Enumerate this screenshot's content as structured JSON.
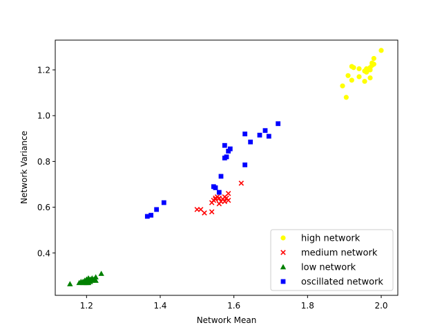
{
  "chart_data": {
    "type": "scatter",
    "title": "",
    "xlabel": "Network Mean",
    "ylabel": "Network Variance",
    "xlim": [
      1.115,
      2.045
    ],
    "ylim": [
      0.215,
      1.33
    ],
    "xticks": [
      1.2,
      1.4,
      1.6,
      1.8,
      2.0
    ],
    "xtick_labels": [
      "1.2",
      "1.4",
      "1.6",
      "1.8",
      "2.0"
    ],
    "yticks": [
      0.4,
      0.6,
      0.8,
      1.0,
      1.2
    ],
    "ytick_labels": [
      "0.4",
      "0.6",
      "0.8",
      "1.0",
      "1.2"
    ],
    "grid": false,
    "legend_position": "lower-right",
    "series": [
      {
        "name": "high network",
        "color": "#ffff00",
        "marker": "circle",
        "points": [
          [
            2.0,
            1.285
          ],
          [
            1.98,
            1.25
          ],
          [
            1.975,
            1.23
          ],
          [
            1.98,
            1.225
          ],
          [
            1.97,
            1.21
          ],
          [
            1.965,
            1.2
          ],
          [
            1.96,
            1.205
          ],
          [
            1.96,
            1.19
          ],
          [
            1.97,
            1.2
          ],
          [
            1.955,
            1.195
          ],
          [
            1.94,
            1.205
          ],
          [
            1.92,
            1.215
          ],
          [
            1.925,
            1.21
          ],
          [
            1.91,
            1.175
          ],
          [
            1.92,
            1.155
          ],
          [
            1.94,
            1.17
          ],
          [
            1.955,
            1.15
          ],
          [
            1.97,
            1.165
          ],
          [
            1.895,
            1.13
          ],
          [
            1.905,
            1.08
          ],
          [
            1.975,
            1.22
          ]
        ]
      },
      {
        "name": "medium network",
        "color": "#ff0000",
        "marker": "x",
        "points": [
          [
            1.62,
            0.705
          ],
          [
            1.585,
            0.66
          ],
          [
            1.575,
            0.645
          ],
          [
            1.58,
            0.64
          ],
          [
            1.57,
            0.635
          ],
          [
            1.585,
            0.63
          ],
          [
            1.56,
            0.64
          ],
          [
            1.555,
            0.645
          ],
          [
            1.55,
            0.635
          ],
          [
            1.545,
            0.63
          ],
          [
            1.54,
            0.62
          ],
          [
            1.565,
            0.625
          ],
          [
            1.575,
            0.625
          ],
          [
            1.56,
            0.615
          ],
          [
            1.5,
            0.59
          ],
          [
            1.51,
            0.59
          ],
          [
            1.52,
            0.575
          ],
          [
            1.54,
            0.58
          ],
          [
            1.55,
            0.64
          ]
        ]
      },
      {
        "name": "low network",
        "color": "#008000",
        "marker": "triangle",
        "points": [
          [
            1.24,
            0.31
          ],
          [
            1.225,
            0.295
          ],
          [
            1.215,
            0.29
          ],
          [
            1.21,
            0.285
          ],
          [
            1.205,
            0.29
          ],
          [
            1.2,
            0.285
          ],
          [
            1.195,
            0.28
          ],
          [
            1.19,
            0.275
          ],
          [
            1.185,
            0.275
          ],
          [
            1.18,
            0.27
          ],
          [
            1.19,
            0.27
          ],
          [
            1.2,
            0.275
          ],
          [
            1.205,
            0.27
          ],
          [
            1.21,
            0.275
          ],
          [
            1.215,
            0.28
          ],
          [
            1.22,
            0.285
          ],
          [
            1.225,
            0.28
          ],
          [
            1.155,
            0.265
          ],
          [
            1.195,
            0.27
          ],
          [
            1.2,
            0.27
          ]
        ]
      },
      {
        "name": "oscillated network",
        "color": "#0000ff",
        "marker": "square",
        "points": [
          [
            1.72,
            0.965
          ],
          [
            1.685,
            0.935
          ],
          [
            1.67,
            0.915
          ],
          [
            1.695,
            0.91
          ],
          [
            1.63,
            0.92
          ],
          [
            1.645,
            0.885
          ],
          [
            1.59,
            0.855
          ],
          [
            1.575,
            0.87
          ],
          [
            1.585,
            0.845
          ],
          [
            1.58,
            0.82
          ],
          [
            1.575,
            0.815
          ],
          [
            1.63,
            0.785
          ],
          [
            1.565,
            0.735
          ],
          [
            1.545,
            0.69
          ],
          [
            1.55,
            0.685
          ],
          [
            1.56,
            0.665
          ],
          [
            1.41,
            0.62
          ],
          [
            1.39,
            0.59
          ],
          [
            1.375,
            0.565
          ],
          [
            1.365,
            0.56
          ]
        ]
      }
    ]
  }
}
